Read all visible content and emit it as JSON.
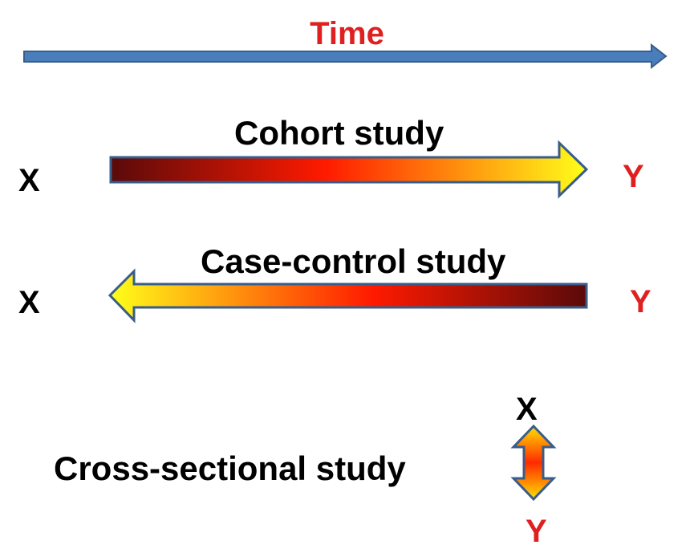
{
  "time": {
    "label": "Time",
    "label_color": "#e02020",
    "arrow_color": "#4a7ebb",
    "arrow_outline": "#385d8a"
  },
  "cohort": {
    "title": "Cohort study",
    "x_label": "X",
    "y_label": "Y",
    "gradient": [
      "#5a0a0a",
      "#ff1a00",
      "#ffff1a"
    ],
    "outline": "#385d8a"
  },
  "case_control": {
    "title": "Case-control study",
    "x_label": "X",
    "y_label": "Y",
    "gradient": [
      "#ffff1a",
      "#ff1a00",
      "#5a0a0a"
    ],
    "outline": "#385d8a"
  },
  "cross_sectional": {
    "title": "Cross-sectional study",
    "x_label": "X",
    "y_label": "Y",
    "gradient": [
      "#ffe000",
      "#ff2a00",
      "#ffe000"
    ],
    "outline": "#385d8a"
  },
  "colors": {
    "x_label": "#000000",
    "y_label": "#e02020"
  }
}
